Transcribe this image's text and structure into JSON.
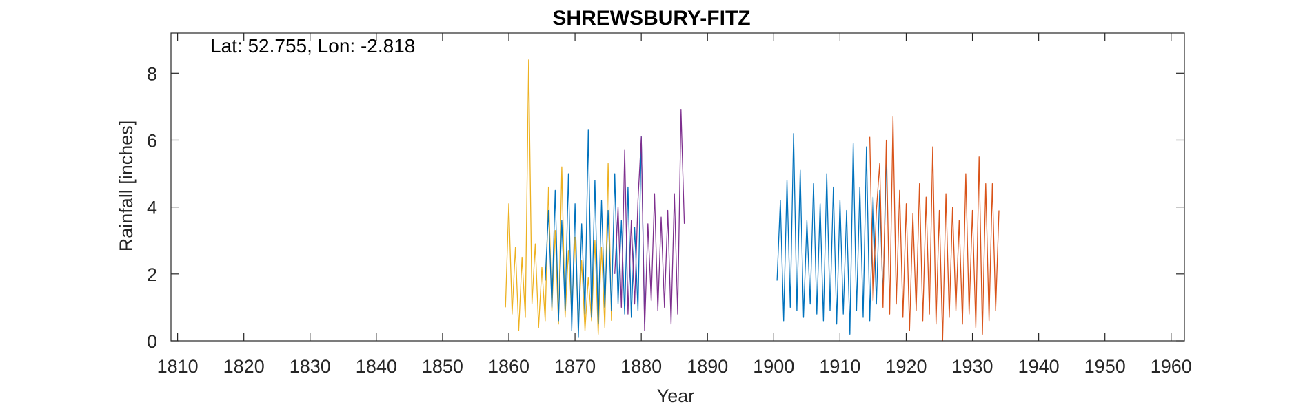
{
  "chart_data": {
    "type": "line",
    "title": "SHREWSBURY-FITZ",
    "annotation": "Lat: 52.755, Lon: -2.818",
    "xlabel": "Year",
    "ylabel": "Rainfall [inches]",
    "xlim": [
      1809,
      1962
    ],
    "ylim": [
      0,
      9.2
    ],
    "xticks": [
      1810,
      1820,
      1830,
      1840,
      1850,
      1860,
      1870,
      1880,
      1890,
      1900,
      1910,
      1920,
      1930,
      1940,
      1950,
      1960
    ],
    "yticks": [
      0,
      2,
      4,
      6,
      8
    ],
    "grid": false,
    "colors": [
      "#EDB120",
      "#0072BD",
      "#7E2F8E",
      "#D95319"
    ],
    "series": [
      {
        "color": "#EDB120",
        "x": [
          1859.5,
          1860.0,
          1860.5,
          1861.0,
          1861.5,
          1862.0,
          1862.5,
          1863.0,
          1863.5,
          1864.0,
          1864.5,
          1865.0,
          1865.5,
          1866.0,
          1866.5,
          1867.0,
          1867.5,
          1868.0,
          1868.5,
          1869.0,
          1869.5,
          1870.0,
          1870.5,
          1871.0,
          1871.5,
          1872.0,
          1872.5,
          1873.0,
          1873.5,
          1874.0,
          1874.5,
          1875.0,
          1875.5
        ],
        "y": [
          1.0,
          4.1,
          0.8,
          2.8,
          0.3,
          2.5,
          0.7,
          8.4,
          1.1,
          2.9,
          0.4,
          2.2,
          0.6,
          4.6,
          0.9,
          3.3,
          0.5,
          5.2,
          0.7,
          2.7,
          0.8,
          3.1,
          0.5,
          2.4,
          0.3,
          1.9,
          0.6,
          3.0,
          0.2,
          2.8,
          0.4,
          5.3,
          0.6
        ]
      },
      {
        "color": "#0072BD",
        "x": [
          1865.5,
          1866.0,
          1866.5,
          1867.0,
          1867.5,
          1868.0,
          1868.5,
          1869.0,
          1869.5,
          1870.0,
          1870.5,
          1871.0,
          1871.5,
          1872.0,
          1872.5,
          1873.0,
          1873.5,
          1874.0,
          1874.5,
          1875.0,
          1875.5,
          1876.0,
          1876.5,
          1877.0,
          1877.5,
          1878.0,
          1878.5,
          1879.0,
          1879.5,
          1880.0,
          1880.5
        ],
        "y": [
          1.8,
          3.9,
          1.0,
          4.5,
          0.6,
          3.6,
          0.9,
          5.0,
          0.3,
          4.1,
          0.1,
          3.5,
          0.8,
          6.3,
          0.7,
          4.8,
          0.5,
          4.2,
          1.0,
          3.9,
          0.9,
          5.0,
          1.1,
          3.6,
          0.8,
          4.6,
          0.7,
          3.4,
          0.9,
          6.1,
          0.5
        ]
      },
      {
        "color": "#7E2F8E",
        "x": [
          1876.0,
          1876.5,
          1877.0,
          1877.5,
          1878.0,
          1878.5,
          1879.0,
          1879.5,
          1880.0,
          1880.5,
          1881.0,
          1881.5,
          1882.0,
          1882.5,
          1883.0,
          1883.5,
          1884.0,
          1884.5,
          1885.0,
          1885.5,
          1886.0,
          1886.5
        ],
        "y": [
          2.0,
          4.0,
          1.0,
          5.7,
          0.8,
          3.6,
          1.1,
          4.2,
          6.1,
          0.3,
          3.5,
          1.2,
          4.4,
          0.9,
          3.7,
          1.0,
          3.9,
          0.5,
          4.4,
          0.8,
          6.9,
          3.5
        ]
      },
      {
        "color": "#0072BD",
        "x": [
          1900.5,
          1901.0,
          1901.5,
          1902.0,
          1902.5,
          1903.0,
          1903.5,
          1904.0,
          1904.5,
          1905.0,
          1905.5,
          1906.0,
          1906.5,
          1907.0,
          1907.5,
          1908.0,
          1908.5,
          1909.0,
          1909.5,
          1910.0,
          1910.5,
          1911.0,
          1911.5,
          1912.0,
          1912.5,
          1913.0,
          1913.5,
          1914.0,
          1914.5,
          1915.0,
          1915.5,
          1916.0,
          1916.5,
          1917.0
        ],
        "y": [
          1.8,
          4.2,
          0.6,
          4.8,
          1.0,
          6.2,
          0.9,
          5.1,
          0.7,
          3.6,
          1.1,
          4.7,
          0.8,
          4.1,
          0.6,
          5.0,
          0.9,
          4.6,
          0.5,
          4.2,
          0.8,
          3.9,
          0.2,
          5.9,
          0.9,
          4.6,
          0.7,
          5.8,
          0.6,
          4.3,
          1.1,
          4.5,
          1.3,
          5.3
        ]
      },
      {
        "color": "#D95319",
        "x": [
          1914.5,
          1915.0,
          1915.5,
          1916.0,
          1916.5,
          1917.0,
          1917.5,
          1918.0,
          1918.5,
          1919.0,
          1919.5,
          1920.0,
          1920.5,
          1921.0,
          1921.5,
          1922.0,
          1922.5,
          1923.0,
          1923.5,
          1924.0,
          1924.5,
          1925.0,
          1925.5,
          1926.0,
          1926.5,
          1927.0,
          1927.5,
          1928.0,
          1928.5,
          1929.0,
          1929.5,
          1930.0,
          1930.5,
          1931.0,
          1931.5,
          1932.0,
          1932.5,
          1933.0,
          1933.5,
          1934.0
        ],
        "y": [
          6.1,
          1.2,
          3.9,
          5.3,
          1.0,
          6.0,
          0.8,
          6.7,
          1.1,
          4.5,
          0.7,
          4.1,
          0.3,
          3.8,
          0.9,
          4.7,
          0.6,
          4.3,
          0.8,
          5.8,
          0.5,
          3.9,
          0.0,
          4.4,
          0.7,
          4.0,
          0.9,
          3.6,
          0.5,
          5.0,
          0.8,
          3.9,
          0.4,
          5.5,
          0.2,
          4.7,
          0.6,
          4.7,
          0.9,
          3.9
        ]
      }
    ]
  }
}
